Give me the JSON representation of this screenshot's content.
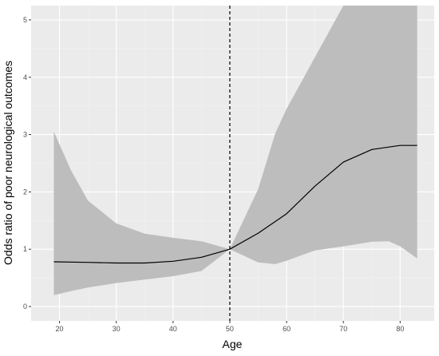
{
  "chart_data": {
    "type": "line",
    "title": "",
    "xlabel": "Age",
    "ylabel": "Odds ratio of poor neurological outcomes",
    "xlim": [
      15,
      86
    ],
    "ylim": [
      -0.25,
      5.25
    ],
    "x_ticks": [
      20,
      30,
      40,
      50,
      60,
      70,
      80
    ],
    "y_ticks": [
      0,
      1,
      2,
      3,
      4,
      5
    ],
    "grid": true,
    "reference_line": {
      "x": 50,
      "style": "dashed",
      "color": "#000000"
    },
    "series": [
      {
        "x": [
          19,
          25,
          30,
          35,
          40,
          45,
          50,
          55,
          60,
          65,
          70,
          75,
          80,
          83
        ],
        "y": [
          0.78,
          0.77,
          0.76,
          0.76,
          0.79,
          0.86,
          1.0,
          1.28,
          1.62,
          2.1,
          2.52,
          2.74,
          2.81,
          2.81
        ],
        "color": "#000000"
      }
    ],
    "confidence_band": {
      "x": [
        19,
        22,
        25,
        30,
        35,
        40,
        45,
        50,
        55,
        58,
        60,
        65,
        70,
        75,
        78,
        80,
        83
      ],
      "lower": [
        0.2,
        0.27,
        0.33,
        0.41,
        0.47,
        0.53,
        0.62,
        1.0,
        0.77,
        0.74,
        0.8,
        0.98,
        1.05,
        1.13,
        1.14,
        1.05,
        0.84
      ],
      "upper": [
        3.05,
        2.38,
        1.85,
        1.45,
        1.27,
        1.2,
        1.14,
        1.0,
        2.05,
        3.02,
        3.45,
        4.35,
        5.3,
        5.3,
        5.3,
        5.3,
        5.3
      ],
      "color": "#bdbdbd"
    }
  },
  "colors": {
    "panel_background": "#ebebeb",
    "grid_major": "#ffffff",
    "grid_minor": "#f2f2f2",
    "tick_text": "#4d4d4d",
    "axis_title": "#000000"
  }
}
